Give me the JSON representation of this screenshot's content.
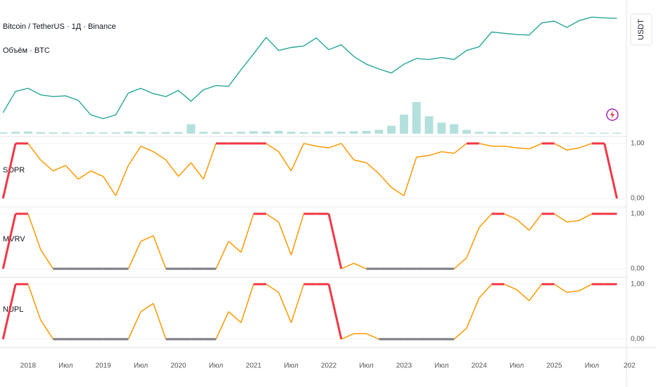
{
  "chart_data": [
    {
      "type": "line",
      "title": "Bitcoin / TetherUS · 1Д · Binance",
      "subtitle": "Объём · BTC",
      "y_label": "USDT",
      "log": true,
      "color": "#26a69a",
      "ylim": [
        3000,
        130000
      ],
      "values": [
        4300,
        9000,
        10000,
        8000,
        7500,
        7700,
        6600,
        4000,
        3500,
        4000,
        8500,
        10000,
        8300,
        7500,
        9300,
        6400,
        9500,
        11000,
        10700,
        19000,
        33000,
        58000,
        37000,
        41000,
        43000,
        57000,
        38000,
        45000,
        30000,
        23000,
        19500,
        17000,
        23000,
        28000,
        27000,
        29000,
        27000,
        37000,
        42000,
        70000,
        67000,
        64000,
        63000,
        96000,
        102000,
        82000,
        104000,
        117000,
        114000,
        112000,
        null
      ]
    },
    {
      "type": "bar",
      "color": "#26a69a",
      "ylim": [
        0,
        100
      ],
      "values": [
        4,
        6,
        7,
        5,
        4,
        4,
        3,
        5,
        4,
        4,
        7,
        6,
        4,
        5,
        5,
        30,
        6,
        5,
        5,
        6,
        8,
        7,
        9,
        6,
        5,
        6,
        7,
        6,
        8,
        9,
        12,
        25,
        60,
        100,
        55,
        35,
        30,
        12,
        6,
        6,
        5,
        4,
        4,
        4,
        4,
        3,
        3,
        3,
        3,
        3,
        null
      ]
    },
    {
      "type": "line",
      "title": "SOPR",
      "color": "#ff9800",
      "highlight_color": "#f23645",
      "base_color": "#787b86",
      "ylim": [
        -0.14,
        1.1
      ],
      "yticks": [
        {
          "value": 1,
          "label": "1,00"
        },
        {
          "value": 0,
          "label": "0,00"
        }
      ],
      "values": [
        0,
        1,
        1,
        0.7,
        0.5,
        0.6,
        0.35,
        0.5,
        0.4,
        0.05,
        0.6,
        0.95,
        0.85,
        0.7,
        0.4,
        0.65,
        0.35,
        1,
        1,
        1,
        1,
        1,
        0.85,
        0.5,
        1,
        0.95,
        0.92,
        1,
        0.7,
        0.65,
        0.45,
        0.2,
        0.05,
        0.75,
        0.78,
        0.85,
        0.82,
        1,
        1,
        0.95,
        0.95,
        0.92,
        0.9,
        1,
        1,
        0.88,
        0.92,
        1,
        1,
        0,
        null
      ]
    },
    {
      "type": "line",
      "title": "MVRV",
      "color": "#ff9800",
      "highlight_color": "#f23645",
      "base_color": "#787b86",
      "ylim": [
        -0.14,
        1.1
      ],
      "yticks": [
        {
          "value": 1,
          "label": "1,00"
        },
        {
          "value": 0,
          "label": "0,00"
        }
      ],
      "values": [
        0,
        1,
        1,
        0.35,
        0,
        0,
        0,
        0,
        0,
        0,
        0,
        0.5,
        0.6,
        0,
        0,
        0,
        0,
        0,
        0.5,
        0.3,
        1,
        1,
        0.85,
        0.25,
        1,
        1,
        1,
        0,
        0.1,
        0,
        0,
        0,
        0,
        0,
        0,
        0,
        0,
        0.2,
        0.75,
        1,
        1,
        0.9,
        0.7,
        1,
        1,
        0.85,
        0.88,
        1,
        1,
        1,
        null
      ]
    },
    {
      "type": "line",
      "title": "NUPL",
      "color": "#ff9800",
      "highlight_color": "#f23645",
      "base_color": "#787b86",
      "ylim": [
        -0.14,
        1.1
      ],
      "yticks": [
        {
          "value": 1,
          "label": "1,00"
        },
        {
          "value": 0,
          "label": "0,00"
        }
      ],
      "categories": [
        null,
        null,
        "2018",
        null,
        null,
        "Июл",
        null,
        null,
        "2019",
        null,
        null,
        "Июл",
        null,
        null,
        "2020",
        null,
        null,
        "Июл",
        null,
        null,
        "2021",
        null,
        null,
        "Июл",
        null,
        null,
        "2022",
        null,
        null,
        "Июл",
        null,
        null,
        "2023",
        null,
        null,
        "Июл",
        null,
        null,
        "2024",
        null,
        null,
        "Июл",
        null,
        null,
        "2025",
        null,
        null,
        "Июл",
        null,
        null,
        "202"
      ],
      "values": [
        0,
        1,
        1,
        0.35,
        0,
        0,
        0,
        0,
        0,
        0,
        0,
        0.5,
        0.65,
        0,
        0,
        0,
        0,
        0,
        0.5,
        0.3,
        1,
        1,
        0.85,
        0.3,
        1,
        1,
        1,
        0,
        0.1,
        0.1,
        0,
        0,
        0,
        0,
        0,
        0,
        0,
        0.2,
        0.75,
        1,
        1,
        0.9,
        0.7,
        1,
        1,
        0.85,
        0.88,
        1,
        1,
        1,
        null
      ]
    }
  ]
}
